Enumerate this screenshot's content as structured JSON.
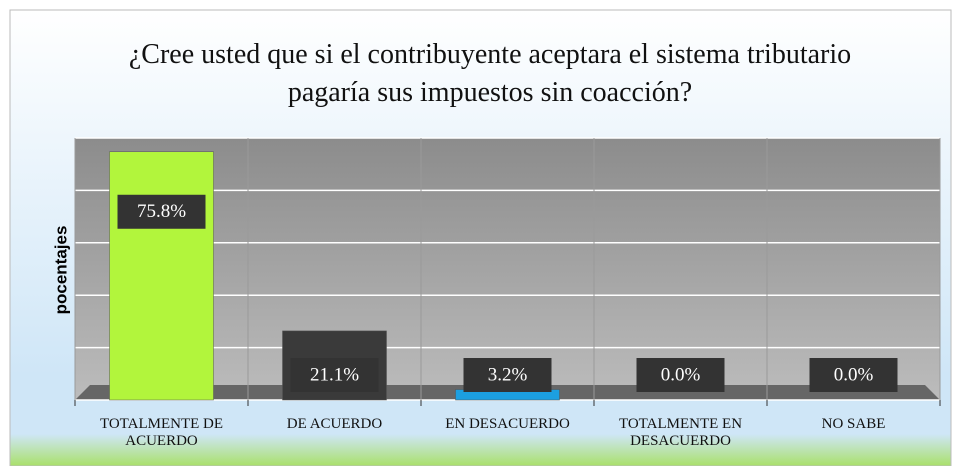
{
  "chart_data": {
    "type": "bar",
    "title": "¿Cree usted que si el contribuyente aceptara el sistema tributario pagaría sus impuestos sin coacción?",
    "y_label": "pocentajes",
    "categories": [
      "TOTALMENTE DE ACUERDO",
      "DE ACUERDO",
      "EN DESACUERDO",
      "TOTALMENTE EN DESACUERDO",
      "NO SABE"
    ],
    "values": [
      75.8,
      21.1,
      3.2,
      0.0,
      0.0
    ],
    "value_labels": [
      "75.8%",
      "21.1%",
      "3.2%",
      "0.0%",
      "0.0%"
    ],
    "colors": [
      "#b2f53c",
      "#3a3a3a",
      "#1c9fe0",
      "#8a8a8a",
      "#8a8a8a"
    ],
    "ylim": [
      0,
      80
    ],
    "yticks": [
      0,
      16,
      32,
      48,
      64,
      80
    ],
    "grid": true
  }
}
